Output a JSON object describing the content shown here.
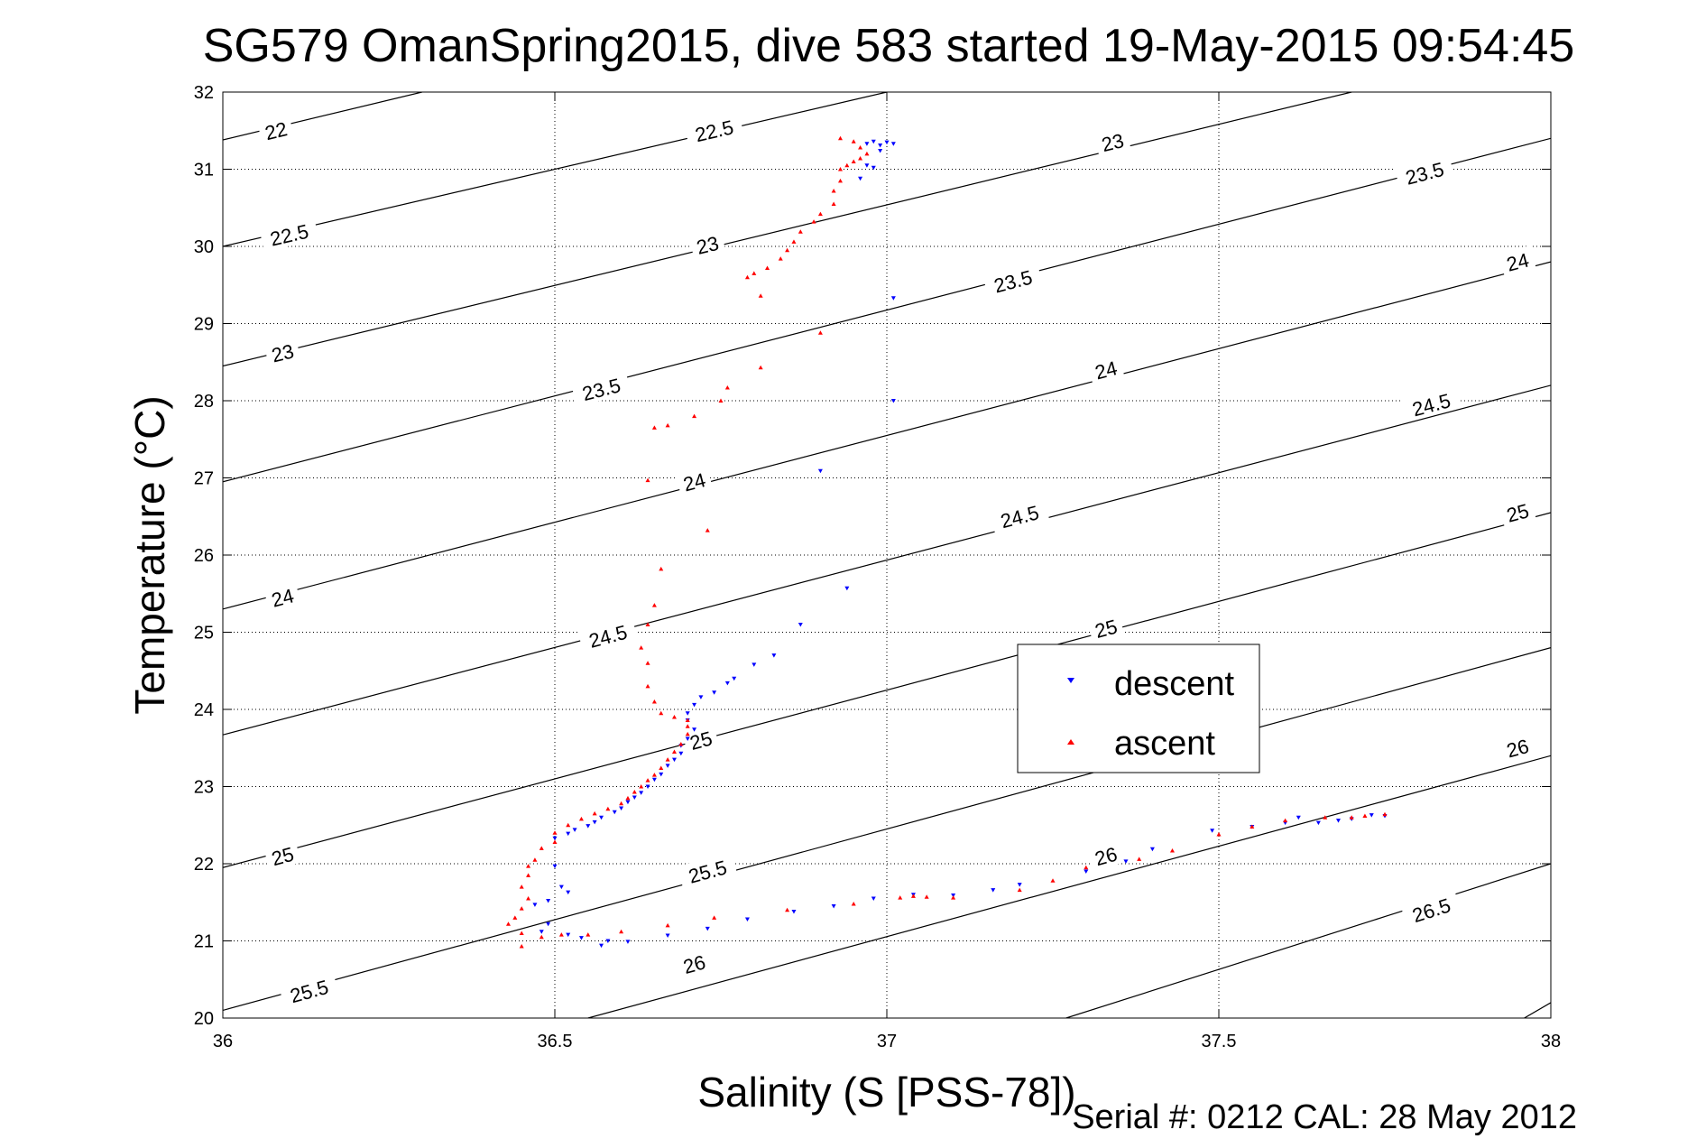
{
  "chart_data": {
    "type": "scatter",
    "title": "SG579 OmanSpring2015, dive 583 started 19-May-2015 09:54:45",
    "xlabel": "Salinity (S [PSS-78])",
    "ylabel": "Temperature (°C)",
    "xlim": [
      36,
      38
    ],
    "ylim": [
      20,
      32
    ],
    "xticks": [
      "36",
      "36.5",
      "37",
      "37.5",
      "38"
    ],
    "yticks": [
      "20",
      "21",
      "22",
      "23",
      "24",
      "25",
      "26",
      "27",
      "28",
      "29",
      "30",
      "31",
      "32"
    ],
    "grid": true,
    "legend_placement": "center-right",
    "footer": "Serial #: 0212  CAL: 28 May 2012",
    "contours": [
      {
        "level": 22,
        "label": "22",
        "x": [
          36,
          36.3
        ],
        "y": [
          31.38,
          32
        ],
        "labels_at": [
          [
            36.08,
            31.5
          ]
        ]
      },
      {
        "level": 22.5,
        "label": "22.5",
        "x": [
          36,
          37
        ],
        "y": [
          30.0,
          32
        ],
        "labels_at": [
          [
            36.1,
            30.15
          ],
          [
            36.74,
            31.5
          ]
        ]
      },
      {
        "level": 23,
        "label": "23",
        "x": [
          36,
          37.7
        ],
        "y": [
          28.45,
          32
        ],
        "labels_at": [
          [
            36.09,
            28.62
          ],
          [
            36.73,
            30.02
          ],
          [
            37.34,
            31.35
          ]
        ]
      },
      {
        "level": 23.5,
        "label": "23.5",
        "x": [
          36,
          38
        ],
        "y": [
          26.95,
          31.4
        ],
        "labels_at": [
          [
            36.57,
            28.15
          ],
          [
            37.19,
            29.55
          ],
          [
            37.81,
            30.95
          ]
        ]
      },
      {
        "level": 24,
        "label": "24",
        "x": [
          36,
          38
        ],
        "y": [
          25.3,
          29.8
        ],
        "labels_at": [
          [
            36.09,
            25.45
          ],
          [
            36.71,
            26.95
          ],
          [
            37.33,
            28.4
          ],
          [
            37.95,
            29.8
          ]
        ]
      },
      {
        "level": 24.5,
        "label": "24.5",
        "x": [
          36,
          38
        ],
        "y": [
          23.67,
          28.2
        ],
        "labels_at": [
          [
            36.58,
            24.95
          ],
          [
            37.2,
            26.5
          ],
          [
            37.82,
            27.95
          ]
        ]
      },
      {
        "level": 25,
        "label": "25",
        "x": [
          36,
          38
        ],
        "y": [
          21.95,
          26.55
        ],
        "labels_at": [
          [
            36.09,
            22.1
          ],
          [
            36.72,
            23.6
          ],
          [
            37.33,
            25.05
          ],
          [
            37.95,
            26.55
          ]
        ]
      },
      {
        "level": 25.5,
        "label": "25.5",
        "x": [
          36,
          38
        ],
        "y": [
          20.1,
          24.8
        ],
        "labels_at": [
          [
            36.13,
            20.35
          ],
          [
            36.73,
            21.9
          ],
          [
            37.35,
            23.35
          ]
        ]
      },
      {
        "level": 26,
        "label": "26",
        "x": [
          36.55,
          38
        ],
        "y": [
          20,
          23.4
        ],
        "labels_at": [
          [
            36.71,
            20.7
          ],
          [
            37.33,
            22.1
          ],
          [
            37.95,
            23.5
          ]
        ]
      },
      {
        "level": 26.5,
        "label": "26.5",
        "x": [
          37.27,
          38
        ],
        "y": [
          20,
          22.0
        ],
        "labels_at": [
          [
            37.82,
            21.4
          ]
        ]
      },
      {
        "level": 27,
        "label": "",
        "x": [
          37.96,
          38
        ],
        "y": [
          20,
          20.2
        ],
        "labels_at": []
      }
    ],
    "series": [
      {
        "name": "descent",
        "color": "#0000ff",
        "marker": "triangle-down",
        "points": [
          [
            36.97,
            31.33
          ],
          [
            36.98,
            31.36
          ],
          [
            36.99,
            31.31
          ],
          [
            37.0,
            31.35
          ],
          [
            37.01,
            31.33
          ],
          [
            36.99,
            31.24
          ],
          [
            36.97,
            31.05
          ],
          [
            36.98,
            31.02
          ],
          [
            36.96,
            30.88
          ],
          [
            37.01,
            29.33
          ],
          [
            37.01,
            28.0
          ],
          [
            36.9,
            27.09
          ],
          [
            36.94,
            25.57
          ],
          [
            36.87,
            25.1
          ],
          [
            36.83,
            24.7
          ],
          [
            36.8,
            24.58
          ],
          [
            36.77,
            24.4
          ],
          [
            36.76,
            24.34
          ],
          [
            36.74,
            24.22
          ],
          [
            36.72,
            24.16
          ],
          [
            36.71,
            24.06
          ],
          [
            36.7,
            23.95
          ],
          [
            36.7,
            23.86
          ],
          [
            36.71,
            23.74
          ],
          [
            36.7,
            23.62
          ],
          [
            36.69,
            23.53
          ],
          [
            36.69,
            23.43
          ],
          [
            36.68,
            23.35
          ],
          [
            36.67,
            23.27
          ],
          [
            36.66,
            23.16
          ],
          [
            36.65,
            23.09
          ],
          [
            36.64,
            23.0
          ],
          [
            36.63,
            22.92
          ],
          [
            36.62,
            22.86
          ],
          [
            36.61,
            22.8
          ],
          [
            36.6,
            22.72
          ],
          [
            36.59,
            22.67
          ],
          [
            36.57,
            22.6
          ],
          [
            36.56,
            22.54
          ],
          [
            36.55,
            22.49
          ],
          [
            36.53,
            22.44
          ],
          [
            36.52,
            22.39
          ],
          [
            36.5,
            22.33
          ],
          [
            36.5,
            21.97
          ],
          [
            36.51,
            21.7
          ],
          [
            36.52,
            21.63
          ],
          [
            36.49,
            21.52
          ],
          [
            36.47,
            21.47
          ],
          [
            36.49,
            21.22
          ],
          [
            36.48,
            21.12
          ],
          [
            36.52,
            21.08
          ],
          [
            36.54,
            21.04
          ],
          [
            36.57,
            20.94
          ],
          [
            36.58,
            21.0
          ],
          [
            36.61,
            20.99
          ],
          [
            36.67,
            21.07
          ],
          [
            36.73,
            21.16
          ],
          [
            36.79,
            21.28
          ],
          [
            36.86,
            21.38
          ],
          [
            36.92,
            21.45
          ],
          [
            36.98,
            21.55
          ],
          [
            37.04,
            21.6
          ],
          [
            37.1,
            21.59
          ],
          [
            37.16,
            21.66
          ],
          [
            37.2,
            21.73
          ],
          [
            37.3,
            21.9
          ],
          [
            37.36,
            22.03
          ],
          [
            37.4,
            22.19
          ],
          [
            37.49,
            22.43
          ],
          [
            37.55,
            22.48
          ],
          [
            37.6,
            22.53
          ],
          [
            37.62,
            22.6
          ],
          [
            37.65,
            22.53
          ],
          [
            37.68,
            22.56
          ],
          [
            37.7,
            22.58
          ],
          [
            37.73,
            22.63
          ],
          [
            37.75,
            22.62
          ]
        ]
      },
      {
        "name": "ascent",
        "color": "#ff0000",
        "marker": "triangle-up",
        "points": [
          [
            36.93,
            31.4
          ],
          [
            36.95,
            31.36
          ],
          [
            36.96,
            31.28
          ],
          [
            36.97,
            31.2
          ],
          [
            36.96,
            31.14
          ],
          [
            36.95,
            31.1
          ],
          [
            36.94,
            31.05
          ],
          [
            36.93,
            31.0
          ],
          [
            36.93,
            30.85
          ],
          [
            36.92,
            30.72
          ],
          [
            36.92,
            30.55
          ],
          [
            36.9,
            30.42
          ],
          [
            36.89,
            30.32
          ],
          [
            36.87,
            30.19
          ],
          [
            36.86,
            30.06
          ],
          [
            36.85,
            29.95
          ],
          [
            36.84,
            29.84
          ],
          [
            36.82,
            29.72
          ],
          [
            36.79,
            29.6
          ],
          [
            36.8,
            29.65
          ],
          [
            36.81,
            29.36
          ],
          [
            36.9,
            28.88
          ],
          [
            36.81,
            28.43
          ],
          [
            36.76,
            28.17
          ],
          [
            36.75,
            28.0
          ],
          [
            36.71,
            27.8
          ],
          [
            36.65,
            27.65
          ],
          [
            36.67,
            27.68
          ],
          [
            36.64,
            26.97
          ],
          [
            36.73,
            26.32
          ],
          [
            36.66,
            25.82
          ],
          [
            36.65,
            25.35
          ],
          [
            36.64,
            25.1
          ],
          [
            36.63,
            24.8
          ],
          [
            36.64,
            24.6
          ],
          [
            36.64,
            24.3
          ],
          [
            36.65,
            24.1
          ],
          [
            36.66,
            23.95
          ],
          [
            36.68,
            23.9
          ],
          [
            36.7,
            23.86
          ],
          [
            36.7,
            23.78
          ],
          [
            36.7,
            23.68
          ],
          [
            36.69,
            23.55
          ],
          [
            36.68,
            23.45
          ],
          [
            36.67,
            23.35
          ],
          [
            36.66,
            23.24
          ],
          [
            36.65,
            23.15
          ],
          [
            36.64,
            23.08
          ],
          [
            36.63,
            23.0
          ],
          [
            36.62,
            22.93
          ],
          [
            36.61,
            22.85
          ],
          [
            36.6,
            22.78
          ],
          [
            36.58,
            22.71
          ],
          [
            36.56,
            22.65
          ],
          [
            36.54,
            22.58
          ],
          [
            36.52,
            22.5
          ],
          [
            36.5,
            22.4
          ],
          [
            36.5,
            22.28
          ],
          [
            36.48,
            22.2
          ],
          [
            36.47,
            22.05
          ],
          [
            36.46,
            21.97
          ],
          [
            36.46,
            21.85
          ],
          [
            36.45,
            21.7
          ],
          [
            36.46,
            21.55
          ],
          [
            36.45,
            21.42
          ],
          [
            36.44,
            21.3
          ],
          [
            36.43,
            21.22
          ],
          [
            36.45,
            21.1
          ],
          [
            36.45,
            20.93
          ],
          [
            36.48,
            21.05
          ],
          [
            36.51,
            21.08
          ],
          [
            36.55,
            21.08
          ],
          [
            36.6,
            21.12
          ],
          [
            36.67,
            21.2
          ],
          [
            36.74,
            21.3
          ],
          [
            36.85,
            21.4
          ],
          [
            36.95,
            21.48
          ],
          [
            37.02,
            21.56
          ],
          [
            37.04,
            21.58
          ],
          [
            37.06,
            21.57
          ],
          [
            37.1,
            21.56
          ],
          [
            37.2,
            21.66
          ],
          [
            37.25,
            21.78
          ],
          [
            37.3,
            21.95
          ],
          [
            37.38,
            22.06
          ],
          [
            37.43,
            22.17
          ],
          [
            37.5,
            22.38
          ],
          [
            37.55,
            22.48
          ],
          [
            37.6,
            22.56
          ],
          [
            37.66,
            22.6
          ],
          [
            37.7,
            22.6
          ],
          [
            37.72,
            22.62
          ],
          [
            37.75,
            22.64
          ]
        ]
      }
    ]
  }
}
